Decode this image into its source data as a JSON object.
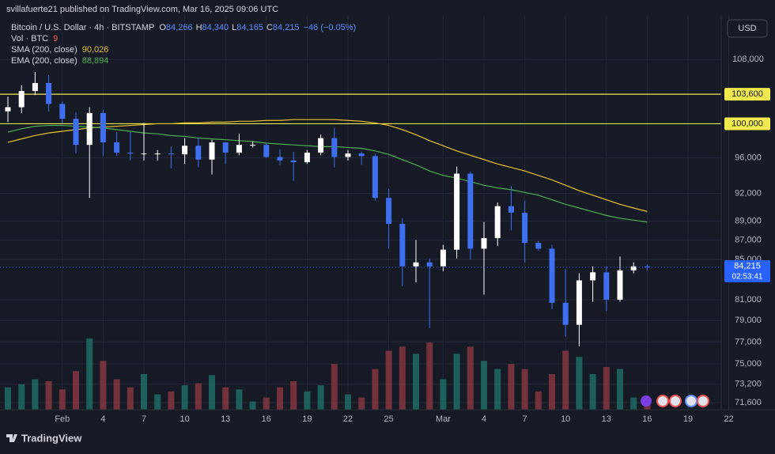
{
  "header": {
    "published": "svillafuerte21 published on TradingView.com, Mar 16, 2025 09:06 UTC",
    "symbol": "Bitcoin / U.S. Dollar · 4h · BITSTAMP",
    "ohlc": [
      {
        "key": "O",
        "value": "84,266"
      },
      {
        "key": "H",
        "value": "84,340"
      },
      {
        "key": "L",
        "value": "84,165"
      },
      {
        "key": "C",
        "value": "84,215"
      }
    ],
    "change": "−46 (−0.05%)",
    "currency": "USD",
    "footer": "TradingView"
  },
  "chart_data": {
    "type": "candlestick",
    "log_scale": true,
    "grid": true,
    "x": [
      "Jan 28",
      "Jan 29",
      "Jan 30",
      "Jan 31",
      "Feb 1",
      "Feb 2",
      "Feb 3",
      "Feb 4",
      "Feb 5",
      "Feb 6",
      "Feb 7",
      "Feb 8",
      "Feb 9",
      "Feb 10",
      "Feb 11",
      "Feb 12",
      "Feb 13",
      "Feb 14",
      "Feb 15",
      "Feb 16",
      "Feb 17",
      "Feb 18",
      "Feb 19",
      "Feb 20",
      "Feb 21",
      "Feb 22",
      "Feb 23",
      "Feb 24",
      "Feb 25",
      "Feb 26",
      "Feb 27",
      "Feb 28",
      "Mar 1",
      "Mar 2",
      "Mar 3",
      "Mar 4",
      "Mar 5",
      "Mar 6",
      "Mar 7",
      "Mar 8",
      "Mar 9",
      "Mar 10",
      "Mar 11",
      "Mar 12",
      "Mar 13",
      "Mar 14",
      "Mar 15",
      "Mar 16",
      "Mar 17",
      "Mar 18",
      "Mar 19",
      "Mar 20",
      "Mar 21",
      "Mar 22",
      "Mar 23"
    ],
    "open": [
      101500,
      102000,
      104000,
      105000,
      102400,
      100600,
      97500,
      101300,
      97800,
      96600,
      96500,
      96500,
      96500,
      96400,
      97400,
      95800,
      97800,
      96600,
      97500,
      97500,
      96100,
      95700,
      95500,
      96600,
      98300,
      96100,
      96500,
      96200,
      91500,
      88700,
      84300,
      84700,
      84300,
      86000,
      94200,
      86100,
      87200,
      90600,
      89900,
      86700,
      86100,
      80700,
      78600,
      82900,
      83700,
      81000,
      83900,
      84300,
      null,
      null,
      null,
      null,
      null,
      null,
      null
    ],
    "high": [
      103300,
      104700,
      106400,
      106000,
      102700,
      101400,
      102000,
      101700,
      99000,
      99000,
      100100,
      96900,
      97300,
      98300,
      98400,
      98100,
      97800,
      98800,
      97900,
      97700,
      97000,
      96700,
      96900,
      98700,
      99500,
      96900,
      96700,
      96500,
      92500,
      89300,
      87000,
      85100,
      86500,
      95000,
      94400,
      88900,
      91000,
      92800,
      91200,
      86900,
      86500,
      84000,
      83600,
      84300,
      84300,
      85300,
      84700,
      84500,
      null,
      null,
      null,
      null,
      null,
      null,
      null
    ],
    "low": [
      100200,
      101300,
      103500,
      101500,
      100000,
      96500,
      91500,
      96200,
      96200,
      95700,
      95700,
      95700,
      94800,
      95300,
      94900,
      94100,
      95300,
      96300,
      97200,
      96000,
      95200,
      93400,
      95300,
      96300,
      94900,
      95700,
      95200,
      91200,
      86100,
      82300,
      82700,
      78300,
      83800,
      85100,
      85000,
      81500,
      86400,
      88000,
      84700,
      85900,
      80100,
      77500,
      76600,
      80800,
      79900,
      80800,
      83600,
      83900,
      null,
      null,
      null,
      null,
      null,
      null,
      null
    ],
    "close": [
      102000,
      104000,
      105000,
      102400,
      100600,
      97500,
      101300,
      97800,
      96600,
      96500,
      96500,
      96500,
      96400,
      97400,
      95800,
      97800,
      96600,
      97500,
      97500,
      96100,
      95700,
      95500,
      96600,
      98300,
      96100,
      96500,
      96200,
      91500,
      88700,
      84300,
      84700,
      84300,
      86000,
      94200,
      86100,
      87200,
      90600,
      89900,
      86700,
      86100,
      80700,
      78600,
      82900,
      83700,
      81000,
      83900,
      84300,
      84215,
      null,
      null,
      null,
      null,
      null,
      null,
      null
    ],
    "up_color": "#ffffff",
    "down_color": "#3d6ff0",
    "volume_name": "Vol · BTC",
    "volume_last_label": "9",
    "volume": [
      22,
      25,
      30,
      28,
      20,
      38,
      70,
      48,
      30,
      22,
      35,
      15,
      18,
      24,
      26,
      34,
      22,
      20,
      8,
      12,
      22,
      28,
      18,
      24,
      45,
      15,
      12,
      40,
      58,
      62,
      55,
      66,
      30,
      55,
      62,
      48,
      40,
      45,
      40,
      18,
      35,
      58,
      52,
      35,
      42,
      40,
      12,
      9,
      null,
      null,
      null,
      null,
      null,
      null,
      null
    ],
    "volume_up_color": "#1d6b64",
    "volume_down_color": "#86363f",
    "indicators": [
      {
        "name": "SMA (200, close)",
        "color": "#e6c229",
        "last_label": "90,026",
        "values": [
          97800,
          98200,
          98600,
          98900,
          99100,
          99300,
          99500,
          99600,
          99700,
          99800,
          99900,
          100000,
          100000,
          100100,
          100100,
          100200,
          100200,
          100300,
          100300,
          100400,
          100400,
          100500,
          100500,
          100500,
          100500,
          100400,
          100300,
          100100,
          99800,
          99300,
          98700,
          98000,
          97400,
          96800,
          96300,
          95800,
          95300,
          94900,
          94500,
          94000,
          93500,
          92900,
          92300,
          91800,
          91300,
          90800,
          90400,
          90026,
          null,
          null,
          null,
          null,
          null,
          null,
          null
        ]
      },
      {
        "name": "EMA (200, close)",
        "color": "#4caf50",
        "last_label": "88,894",
        "values": [
          99000,
          99400,
          99700,
          99800,
          99800,
          99700,
          99600,
          99500,
          99300,
          99100,
          98900,
          98800,
          98600,
          98500,
          98300,
          98200,
          98100,
          98000,
          97900,
          97700,
          97600,
          97500,
          97400,
          97300,
          97300,
          97200,
          97100,
          96800,
          96400,
          95800,
          95200,
          94500,
          94000,
          93700,
          93300,
          92900,
          92600,
          92400,
          92100,
          91800,
          91300,
          90800,
          90400,
          90000,
          89600,
          89300,
          89100,
          88894,
          null,
          null,
          null,
          null,
          null,
          null,
          null
        ]
      }
    ],
    "ylim": [
      71000,
      113800
    ],
    "yticks": [
      {
        "value": 108000,
        "label": "108,000"
      },
      {
        "value": 96000,
        "label": "96,000"
      },
      {
        "value": 92000,
        "label": "92,000"
      },
      {
        "value": 89000,
        "label": "89,000"
      },
      {
        "value": 87000,
        "label": "87,000"
      },
      {
        "value": 85000,
        "label": "85,000"
      },
      {
        "value": 81000,
        "label": "81,000"
      },
      {
        "value": 79000,
        "label": "79,000"
      },
      {
        "value": 77000,
        "label": "77,000"
      },
      {
        "value": 75000,
        "label": "75,000"
      },
      {
        "value": 73200,
        "label": "73,200"
      },
      {
        "value": 71600,
        "label": "71,600"
      }
    ],
    "levels": [
      {
        "value": 103600,
        "label": "103,600"
      },
      {
        "value": 100000,
        "label": "100,000"
      }
    ],
    "level_color": "#f2e94e",
    "last_price": {
      "value": 84215,
      "label": "84,215"
    },
    "countdown": "02:53:41",
    "last_color": "#2962ff",
    "xticks": [
      {
        "value": "Feb 1",
        "label": "Feb"
      },
      {
        "value": "Feb 4",
        "label": "4"
      },
      {
        "value": "Feb 7",
        "label": "7"
      },
      {
        "value": "Feb 10",
        "label": "10"
      },
      {
        "value": "Feb 13",
        "label": "13"
      },
      {
        "value": "Feb 16",
        "label": "16"
      },
      {
        "value": "Feb 19",
        "label": "19"
      },
      {
        "value": "Feb 22",
        "label": "22"
      },
      {
        "value": "Feb 25",
        "label": "25"
      },
      {
        "value": "Mar 1",
        "label": "Mar"
      },
      {
        "value": "Mar 4",
        "label": "4"
      },
      {
        "value": "Mar 7",
        "label": "7"
      },
      {
        "value": "Mar 10",
        "label": "10"
      },
      {
        "value": "Mar 13",
        "label": "13"
      },
      {
        "value": "Mar 16",
        "label": "16"
      },
      {
        "value": "Mar 19",
        "label": "19"
      },
      {
        "value": "Mar 22",
        "label": "22"
      }
    ]
  }
}
